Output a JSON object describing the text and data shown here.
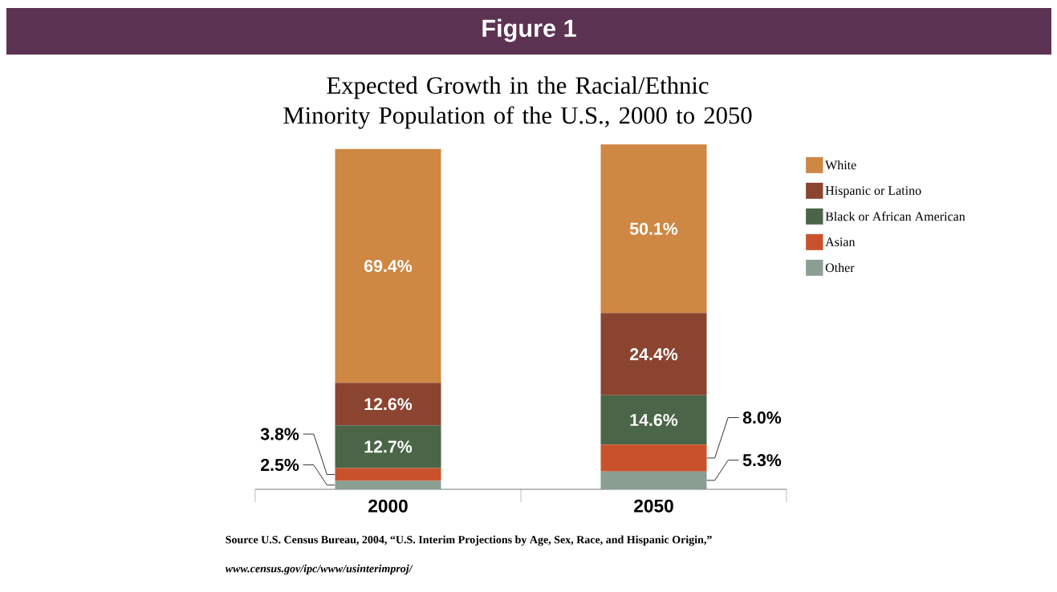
{
  "chart_data": {
    "type": "bar",
    "stacked": true,
    "title": "Figure 1",
    "subtitle": "Expected Growth in the Racial/Ethnic Minority Population of the U.S., 2000 to 2050",
    "categories": [
      "2000",
      "2050"
    ],
    "series": [
      {
        "name": "Other",
        "color": "#8a9e92",
        "values": [
          2.5,
          5.3
        ],
        "value_labels": [
          "2.5%",
          "5.3%"
        ]
      },
      {
        "name": "Asian",
        "color": "#c9522d",
        "values": [
          3.8,
          8.0
        ],
        "value_labels": [
          "3.8%",
          "8.0%"
        ]
      },
      {
        "name": "Black or African American",
        "color": "#4a6548",
        "values": [
          12.7,
          14.6
        ],
        "value_labels": [
          "12.7%",
          "14.6%"
        ]
      },
      {
        "name": "Hispanic or Latino",
        "color": "#8b4430",
        "values": [
          12.6,
          24.4
        ],
        "value_labels": [
          "12.6%",
          "24.4%"
        ]
      },
      {
        "name": "White",
        "color": "#cf8744",
        "values": [
          69.4,
          50.1
        ],
        "value_labels": [
          "69.4%",
          "50.1%"
        ]
      }
    ],
    "legend": "right",
    "annotations": [
      "Source U.S. Census Bureau, 2004, “U.S. Interim Projections by Age, Sex, Race, and Hispanic Origin,”",
      "www.census.gov/ipc/www/usinterimproj/"
    ]
  }
}
